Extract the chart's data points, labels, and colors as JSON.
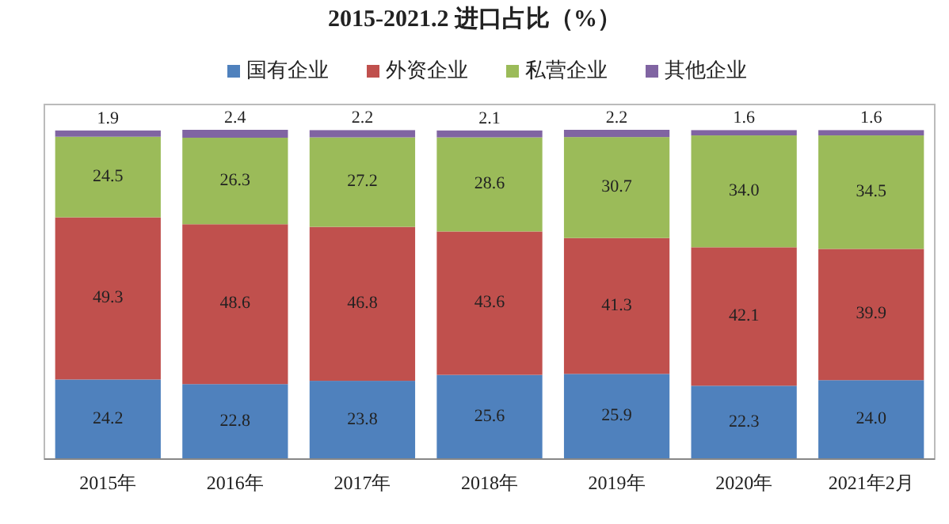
{
  "chart_data": {
    "type": "bar",
    "title": "2015-2021.2 进口占比（%）",
    "stacked": true,
    "data_labels": true,
    "legend": "top",
    "categories": [
      "2015年",
      "2016年",
      "2017年",
      "2018年",
      "2019年",
      "2020年",
      "2021年2月"
    ],
    "series": [
      {
        "name": "国有企业",
        "color": "#4f81bd",
        "values": [
          24.2,
          22.8,
          23.8,
          25.6,
          25.9,
          22.3,
          24.0
        ],
        "value_labels": [
          "24.2",
          "22.8",
          "23.8",
          "25.6",
          "25.9",
          "22.3",
          "24.0"
        ]
      },
      {
        "name": "外资企业",
        "color": "#c0504d",
        "values": [
          49.3,
          48.6,
          46.8,
          43.6,
          41.3,
          42.1,
          39.9
        ]
      },
      {
        "name": "私营企业",
        "color": "#9bbb59",
        "values": [
          24.5,
          26.3,
          27.2,
          28.6,
          30.7,
          34.0,
          34.5
        ],
        "value_labels": [
          "24.5",
          "26.3",
          "27.2",
          "28.6",
          "30.7",
          "34.0",
          "34.5"
        ]
      },
      {
        "name": "其他企业",
        "color": "#8064a2",
        "values": [
          1.9,
          2.4,
          2.2,
          2.1,
          2.2,
          1.6,
          1.6
        ]
      }
    ]
  }
}
